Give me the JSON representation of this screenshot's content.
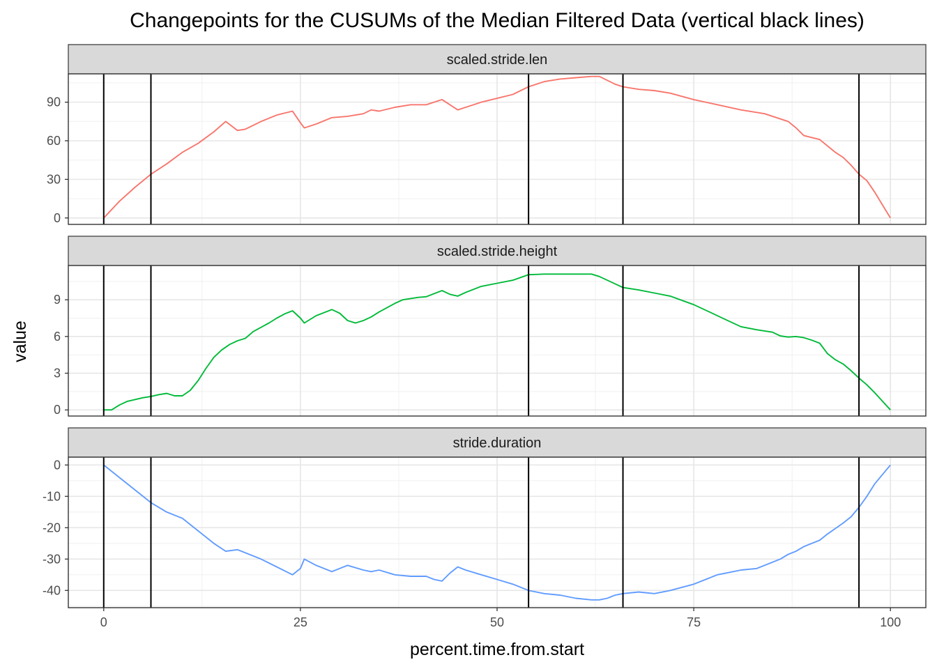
{
  "chart_data": {
    "type": "line",
    "title": "Changepoints for the CUSUMs of the Median Filtered Data (vertical black lines)",
    "xlabel": "percent.time.from.start",
    "ylabel": "value",
    "xlim": [
      -4.5,
      104.5
    ],
    "x_ticks": [
      0,
      25,
      50,
      75,
      100
    ],
    "x_tick_labels": [
      "0",
      "25",
      "50",
      "75",
      "100"
    ],
    "grid": true,
    "legend": "none",
    "changepoints": [
      0,
      6,
      54,
      66,
      96
    ],
    "changepoint_color": "#000000",
    "panels": [
      {
        "label": "scaled.stride.len",
        "color": "#F8766D",
        "ylim": [
          -5,
          112
        ],
        "y_ticks": [
          0,
          30,
          60,
          90
        ],
        "y_tick_labels": [
          "0",
          "30",
          "60",
          "90"
        ],
        "points": [
          [
            0,
            0
          ],
          [
            2,
            13
          ],
          [
            4,
            24
          ],
          [
            6,
            34
          ],
          [
            8,
            42
          ],
          [
            10,
            51
          ],
          [
            12,
            58
          ],
          [
            14,
            67
          ],
          [
            15.5,
            75
          ],
          [
            17,
            68
          ],
          [
            18,
            69
          ],
          [
            20,
            75
          ],
          [
            22,
            80
          ],
          [
            24,
            83
          ],
          [
            25,
            74
          ],
          [
            25.5,
            70
          ],
          [
            27,
            73
          ],
          [
            29,
            78
          ],
          [
            31,
            79
          ],
          [
            33,
            81
          ],
          [
            34,
            84
          ],
          [
            35,
            83
          ],
          [
            37,
            86
          ],
          [
            39,
            88
          ],
          [
            41,
            88
          ],
          [
            43,
            92
          ],
          [
            44,
            88
          ],
          [
            45,
            84
          ],
          [
            46,
            86
          ],
          [
            48,
            90
          ],
          [
            50,
            93
          ],
          [
            52,
            96
          ],
          [
            54,
            102
          ],
          [
            56,
            106
          ],
          [
            58,
            108
          ],
          [
            60,
            109
          ],
          [
            62,
            110
          ],
          [
            63,
            110
          ],
          [
            65,
            104
          ],
          [
            66,
            102
          ],
          [
            68,
            100
          ],
          [
            70,
            99
          ],
          [
            72,
            97
          ],
          [
            75,
            92
          ],
          [
            78,
            88
          ],
          [
            81,
            84
          ],
          [
            84,
            81
          ],
          [
            87,
            75
          ],
          [
            88,
            70
          ],
          [
            89,
            64
          ],
          [
            91,
            61
          ],
          [
            92,
            56
          ],
          [
            93,
            51
          ],
          [
            94,
            47
          ],
          [
            95,
            41
          ],
          [
            96,
            34
          ],
          [
            97,
            29
          ],
          [
            98,
            20
          ],
          [
            99,
            10
          ],
          [
            100,
            0
          ]
        ]
      },
      {
        "label": "scaled.stride.height",
        "color": "#00BA38",
        "ylim": [
          -0.5,
          11.8
        ],
        "y_ticks": [
          0,
          3,
          6,
          9
        ],
        "y_tick_labels": [
          "0",
          "3",
          "6",
          "9"
        ],
        "points": [
          [
            0,
            0
          ],
          [
            1,
            0
          ],
          [
            2,
            0.4
          ],
          [
            3,
            0.7
          ],
          [
            4,
            0.85
          ],
          [
            5,
            1.0
          ],
          [
            6,
            1.1
          ],
          [
            7,
            1.25
          ],
          [
            8,
            1.35
          ],
          [
            9,
            1.15
          ],
          [
            10,
            1.15
          ],
          [
            11,
            1.6
          ],
          [
            12,
            2.4
          ],
          [
            13,
            3.4
          ],
          [
            14,
            4.3
          ],
          [
            15,
            4.9
          ],
          [
            16,
            5.35
          ],
          [
            17,
            5.65
          ],
          [
            18,
            5.85
          ],
          [
            19,
            6.4
          ],
          [
            21,
            7.1
          ],
          [
            22,
            7.5
          ],
          [
            23,
            7.85
          ],
          [
            24,
            8.1
          ],
          [
            25,
            7.5
          ],
          [
            25.5,
            7.1
          ],
          [
            27,
            7.7
          ],
          [
            29,
            8.2
          ],
          [
            30,
            7.9
          ],
          [
            31,
            7.3
          ],
          [
            32,
            7.1
          ],
          [
            33,
            7.3
          ],
          [
            34,
            7.6
          ],
          [
            35,
            8.0
          ],
          [
            37,
            8.7
          ],
          [
            38,
            9.0
          ],
          [
            40,
            9.2
          ],
          [
            41,
            9.25
          ],
          [
            42,
            9.5
          ],
          [
            43,
            9.75
          ],
          [
            44,
            9.45
          ],
          [
            45,
            9.3
          ],
          [
            46,
            9.6
          ],
          [
            48,
            10.1
          ],
          [
            50,
            10.35
          ],
          [
            52,
            10.6
          ],
          [
            54,
            11.05
          ],
          [
            56,
            11.1
          ],
          [
            58,
            11.1
          ],
          [
            60,
            11.1
          ],
          [
            62,
            11.1
          ],
          [
            63,
            10.9
          ],
          [
            65,
            10.3
          ],
          [
            66,
            10.0
          ],
          [
            68,
            9.8
          ],
          [
            70,
            9.55
          ],
          [
            72,
            9.3
          ],
          [
            75,
            8.6
          ],
          [
            77,
            8.0
          ],
          [
            79,
            7.4
          ],
          [
            81,
            6.8
          ],
          [
            83,
            6.55
          ],
          [
            85,
            6.35
          ],
          [
            86,
            6.05
          ],
          [
            87,
            5.95
          ],
          [
            88,
            6.0
          ],
          [
            89,
            5.9
          ],
          [
            90,
            5.7
          ],
          [
            91,
            5.45
          ],
          [
            92,
            4.6
          ],
          [
            93,
            4.1
          ],
          [
            94,
            3.75
          ],
          [
            95,
            3.2
          ],
          [
            96,
            2.6
          ],
          [
            97,
            2.05
          ],
          [
            98,
            1.4
          ],
          [
            99,
            0.7
          ],
          [
            100,
            0
          ]
        ]
      },
      {
        "label": "stride.duration",
        "color": "#619CFF",
        "ylim": [
          -45.5,
          2.5
        ],
        "y_ticks": [
          0,
          -10,
          -20,
          -30,
          -40
        ],
        "y_tick_labels": [
          "0",
          "-10",
          "-20",
          "-30",
          "-40"
        ],
        "points": [
          [
            0,
            0
          ],
          [
            2,
            -4
          ],
          [
            4,
            -8
          ],
          [
            6,
            -12
          ],
          [
            8,
            -15
          ],
          [
            10,
            -17
          ],
          [
            12,
            -21
          ],
          [
            14,
            -25
          ],
          [
            15.5,
            -27.5
          ],
          [
            17,
            -27
          ],
          [
            18,
            -28
          ],
          [
            20,
            -30
          ],
          [
            22,
            -32.5
          ],
          [
            24,
            -35
          ],
          [
            25,
            -33
          ],
          [
            25.5,
            -30
          ],
          [
            27,
            -32
          ],
          [
            29,
            -34
          ],
          [
            30,
            -33
          ],
          [
            31,
            -32
          ],
          [
            33,
            -33.5
          ],
          [
            34,
            -34
          ],
          [
            35,
            -33.5
          ],
          [
            37,
            -35
          ],
          [
            39,
            -35.5
          ],
          [
            41,
            -35.5
          ],
          [
            42,
            -36.5
          ],
          [
            43,
            -37
          ],
          [
            44,
            -34.5
          ],
          [
            45,
            -32.5
          ],
          [
            46,
            -33.5
          ],
          [
            48,
            -35
          ],
          [
            50,
            -36.5
          ],
          [
            52,
            -38
          ],
          [
            54,
            -40
          ],
          [
            56,
            -41
          ],
          [
            58,
            -41.5
          ],
          [
            60,
            -42.5
          ],
          [
            62,
            -43
          ],
          [
            63,
            -43
          ],
          [
            64,
            -42.5
          ],
          [
            65,
            -41.5
          ],
          [
            66,
            -41
          ],
          [
            68,
            -40.5
          ],
          [
            70,
            -41
          ],
          [
            72,
            -40
          ],
          [
            75,
            -38
          ],
          [
            78,
            -35
          ],
          [
            80,
            -34
          ],
          [
            81,
            -33.5
          ],
          [
            83,
            -33
          ],
          [
            85,
            -31
          ],
          [
            86,
            -30
          ],
          [
            87,
            -28.5
          ],
          [
            88,
            -27.5
          ],
          [
            89,
            -26
          ],
          [
            90,
            -25
          ],
          [
            91,
            -24
          ],
          [
            92,
            -22
          ],
          [
            94,
            -18.5
          ],
          [
            95,
            -16.5
          ],
          [
            96,
            -13.5
          ],
          [
            97,
            -10
          ],
          [
            98,
            -6
          ],
          [
            99,
            -3
          ],
          [
            100,
            0
          ]
        ]
      }
    ]
  }
}
